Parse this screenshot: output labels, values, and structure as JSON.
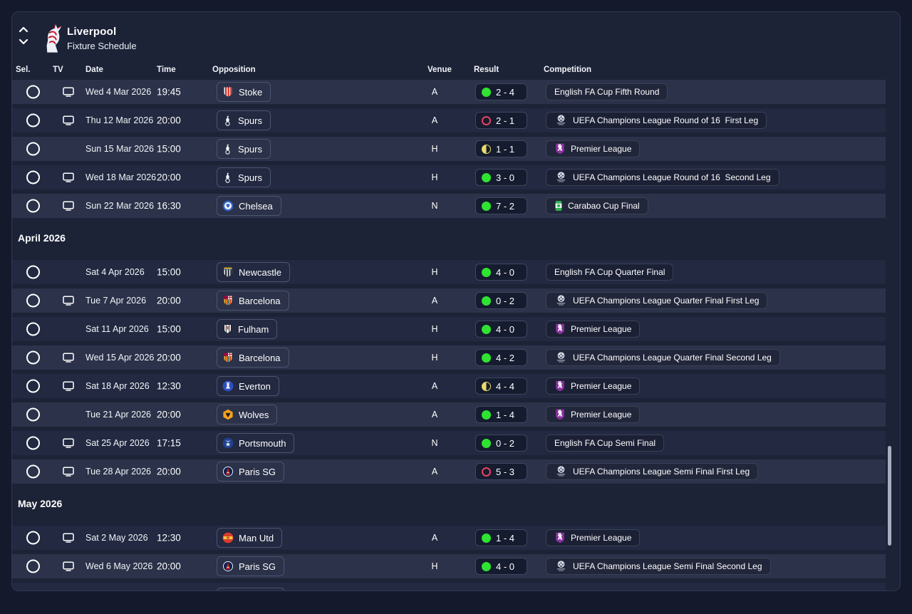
{
  "header": {
    "title": "Liverpool",
    "subtitle": "Fixture Schedule",
    "club_icon": "liverpool-crest",
    "nav": {
      "up_icon": "chevron-up",
      "down_icon": "chevron-down"
    }
  },
  "columns": {
    "sel": "Sel.",
    "tv": "TV",
    "date": "Date",
    "time": "Time",
    "opposition": "Opposition",
    "venue": "Venue",
    "result": "Result",
    "competition": "Competition"
  },
  "colors": {
    "outer_bg": "#141a2c",
    "panel_bg": "#1c2337",
    "row_light": "#2b3249",
    "row_dark": "#222941",
    "win": "#2fe331",
    "loss": "#e8425e",
    "draw": "#e8dc6a"
  },
  "sections": [
    {
      "month": "",
      "rows": [
        {
          "tv": true,
          "date": "Wed 4 Mar 2026",
          "time": "19:45",
          "opponent": "Stoke",
          "opponent_icon": "stoke",
          "venue": "A",
          "outcome": "win",
          "score": "2 - 4",
          "competition": "English FA Cup Fifth Round",
          "competition_icon": "",
          "shade": "light"
        },
        {
          "tv": true,
          "date": "Thu 12 Mar 2026",
          "time": "20:00",
          "opponent": "Spurs",
          "opponent_icon": "spurs",
          "venue": "A",
          "outcome": "loss",
          "score": "2 - 1",
          "competition": "UEFA Champions League Round of 16  First Leg",
          "competition_icon": "champions-league",
          "shade": "dark"
        },
        {
          "tv": false,
          "date": "Sun 15 Mar 2026",
          "time": "15:00",
          "opponent": "Spurs",
          "opponent_icon": "spurs",
          "venue": "H",
          "outcome": "draw",
          "score": "1 - 1",
          "competition": "Premier League",
          "competition_icon": "premier-league",
          "shade": "light"
        },
        {
          "tv": true,
          "date": "Wed 18 Mar 2026",
          "time": "20:00",
          "opponent": "Spurs",
          "opponent_icon": "spurs",
          "venue": "H",
          "outcome": "win",
          "score": "3 - 0",
          "competition": "UEFA Champions League Round of 16  Second Leg",
          "competition_icon": "champions-league",
          "shade": "dark"
        },
        {
          "tv": true,
          "date": "Sun 22 Mar 2026",
          "time": "16:30",
          "opponent": "Chelsea",
          "opponent_icon": "chelsea",
          "venue": "N",
          "outcome": "win",
          "score": "7 - 2",
          "competition": "Carabao Cup Final",
          "competition_icon": "carabao",
          "shade": "light"
        }
      ]
    },
    {
      "month": "April 2026",
      "rows": [
        {
          "tv": false,
          "date": "Sat 4 Apr 2026",
          "time": "15:00",
          "opponent": "Newcastle",
          "opponent_icon": "newcastle",
          "venue": "H",
          "outcome": "win",
          "score": "4 - 0",
          "competition": "English FA Cup Quarter Final",
          "competition_icon": "",
          "shade": "dark"
        },
        {
          "tv": true,
          "date": "Tue 7 Apr 2026",
          "time": "20:00",
          "opponent": "Barcelona",
          "opponent_icon": "barcelona",
          "venue": "A",
          "outcome": "win",
          "score": "0 - 2",
          "competition": "UEFA Champions League Quarter Final First Leg",
          "competition_icon": "champions-league",
          "shade": "light"
        },
        {
          "tv": false,
          "date": "Sat 11 Apr 2026",
          "time": "15:00",
          "opponent": "Fulham",
          "opponent_icon": "fulham",
          "venue": "H",
          "outcome": "win",
          "score": "4 - 0",
          "competition": "Premier League",
          "competition_icon": "premier-league",
          "shade": "dark"
        },
        {
          "tv": true,
          "date": "Wed 15 Apr 2026",
          "time": "20:00",
          "opponent": "Barcelona",
          "opponent_icon": "barcelona",
          "venue": "H",
          "outcome": "win",
          "score": "4 - 2",
          "competition": "UEFA Champions League Quarter Final Second Leg",
          "competition_icon": "champions-league",
          "shade": "light"
        },
        {
          "tv": true,
          "date": "Sat 18 Apr 2026",
          "time": "12:30",
          "opponent": "Everton",
          "opponent_icon": "everton",
          "venue": "A",
          "outcome": "draw",
          "score": "4 - 4",
          "competition": "Premier League",
          "competition_icon": "premier-league",
          "shade": "dark"
        },
        {
          "tv": false,
          "date": "Tue 21 Apr 2026",
          "time": "20:00",
          "opponent": "Wolves",
          "opponent_icon": "wolves",
          "venue": "A",
          "outcome": "win",
          "score": "1 - 4",
          "competition": "Premier League",
          "competition_icon": "premier-league",
          "shade": "light"
        },
        {
          "tv": true,
          "date": "Sat 25 Apr 2026",
          "time": "17:15",
          "opponent": "Portsmouth",
          "opponent_icon": "portsmouth",
          "venue": "N",
          "outcome": "win",
          "score": "0 - 2",
          "competition": "English FA Cup Semi Final",
          "competition_icon": "",
          "shade": "dark"
        },
        {
          "tv": true,
          "date": "Tue 28 Apr 2026",
          "time": "20:00",
          "opponent": "Paris SG",
          "opponent_icon": "paris-sg",
          "venue": "A",
          "outcome": "loss",
          "score": "5 - 3",
          "competition": "UEFA Champions League Semi Final First Leg",
          "competition_icon": "champions-league",
          "shade": "light"
        }
      ]
    },
    {
      "month": "May 2026",
      "rows": [
        {
          "tv": true,
          "date": "Sat 2 May 2026",
          "time": "12:30",
          "opponent": "Man Utd",
          "opponent_icon": "man-utd",
          "venue": "A",
          "outcome": "win",
          "score": "1 - 4",
          "competition": "Premier League",
          "competition_icon": "premier-league",
          "shade": "dark"
        },
        {
          "tv": true,
          "date": "Wed 6 May 2026",
          "time": "20:00",
          "opponent": "Paris SG",
          "opponent_icon": "paris-sg",
          "venue": "H",
          "outcome": "win",
          "score": "4 - 0",
          "competition": "UEFA Champions League Semi Final Second Leg",
          "competition_icon": "champions-league",
          "shade": "light"
        },
        {
          "partial": true,
          "shade": "dark"
        }
      ]
    }
  ],
  "scrollbar": {
    "visible": true
  }
}
